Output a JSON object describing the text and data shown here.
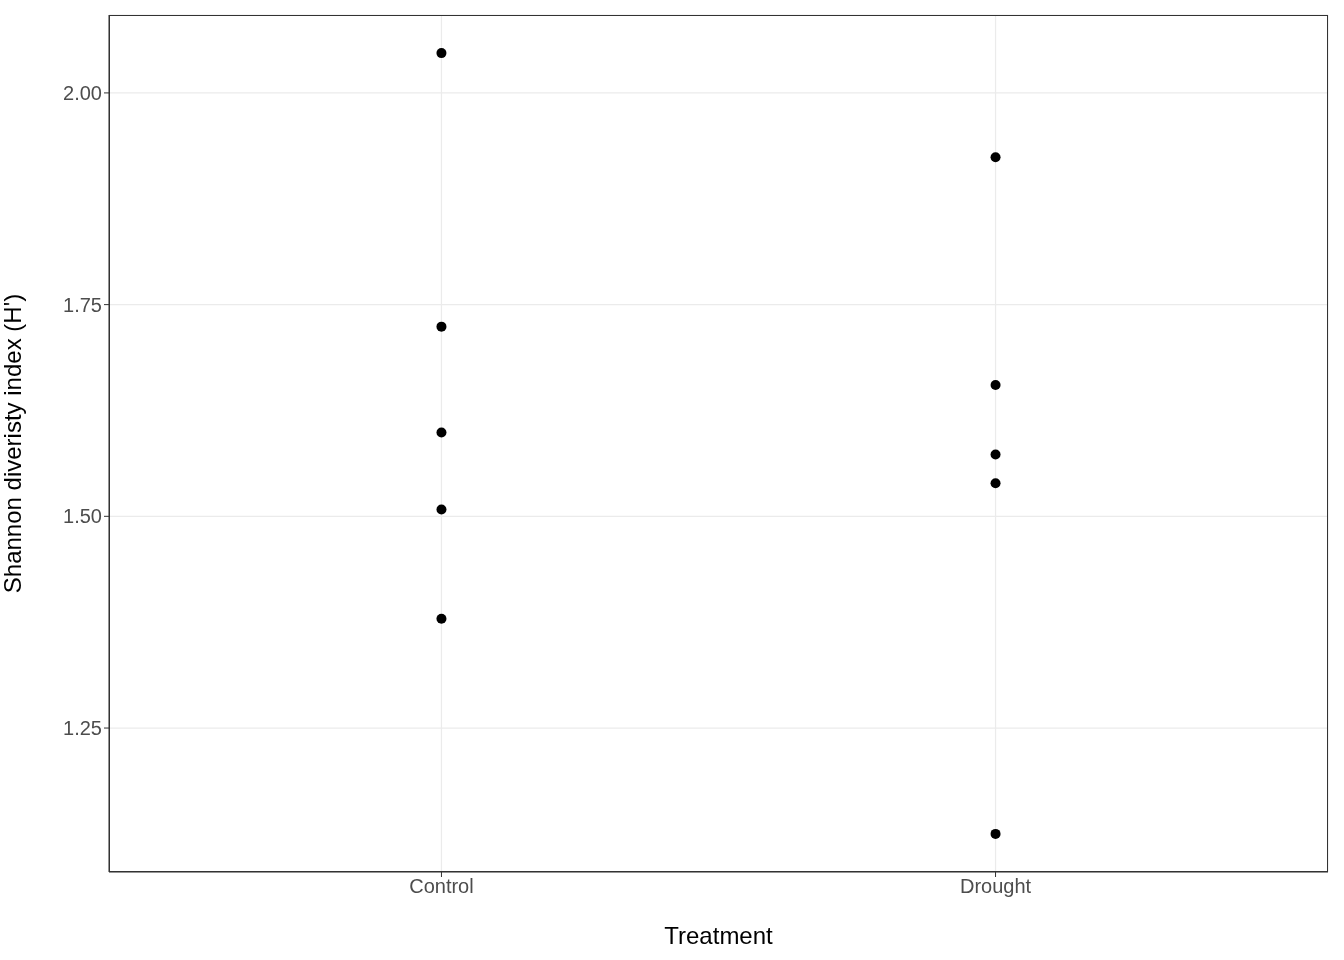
{
  "chart_data": {
    "type": "scatter",
    "xlabel": "Treatment",
    "ylabel": "Shannon diveristy index (H')",
    "categories": [
      "Control",
      "Drought"
    ],
    "series": [
      {
        "color": "#000000",
        "x": [
          "Control",
          "Control",
          "Control",
          "Control",
          "Control",
          "Drought",
          "Drought",
          "Drought",
          "Drought",
          "Drought"
        ],
        "values": [
          2.047,
          1.724,
          1.599,
          1.508,
          1.379,
          1.924,
          1.655,
          1.573,
          1.539,
          1.125
        ]
      }
    ],
    "ylim": [
      1.08,
      2.092
    ],
    "yticks": [
      {
        "value": 1.25,
        "label": "1.25"
      },
      {
        "value": 1.5,
        "label": "1.50"
      },
      {
        "value": 1.75,
        "label": "1.75"
      },
      {
        "value": 2,
        "label": "2.00"
      }
    ],
    "grid": true,
    "marker": "circle"
  }
}
